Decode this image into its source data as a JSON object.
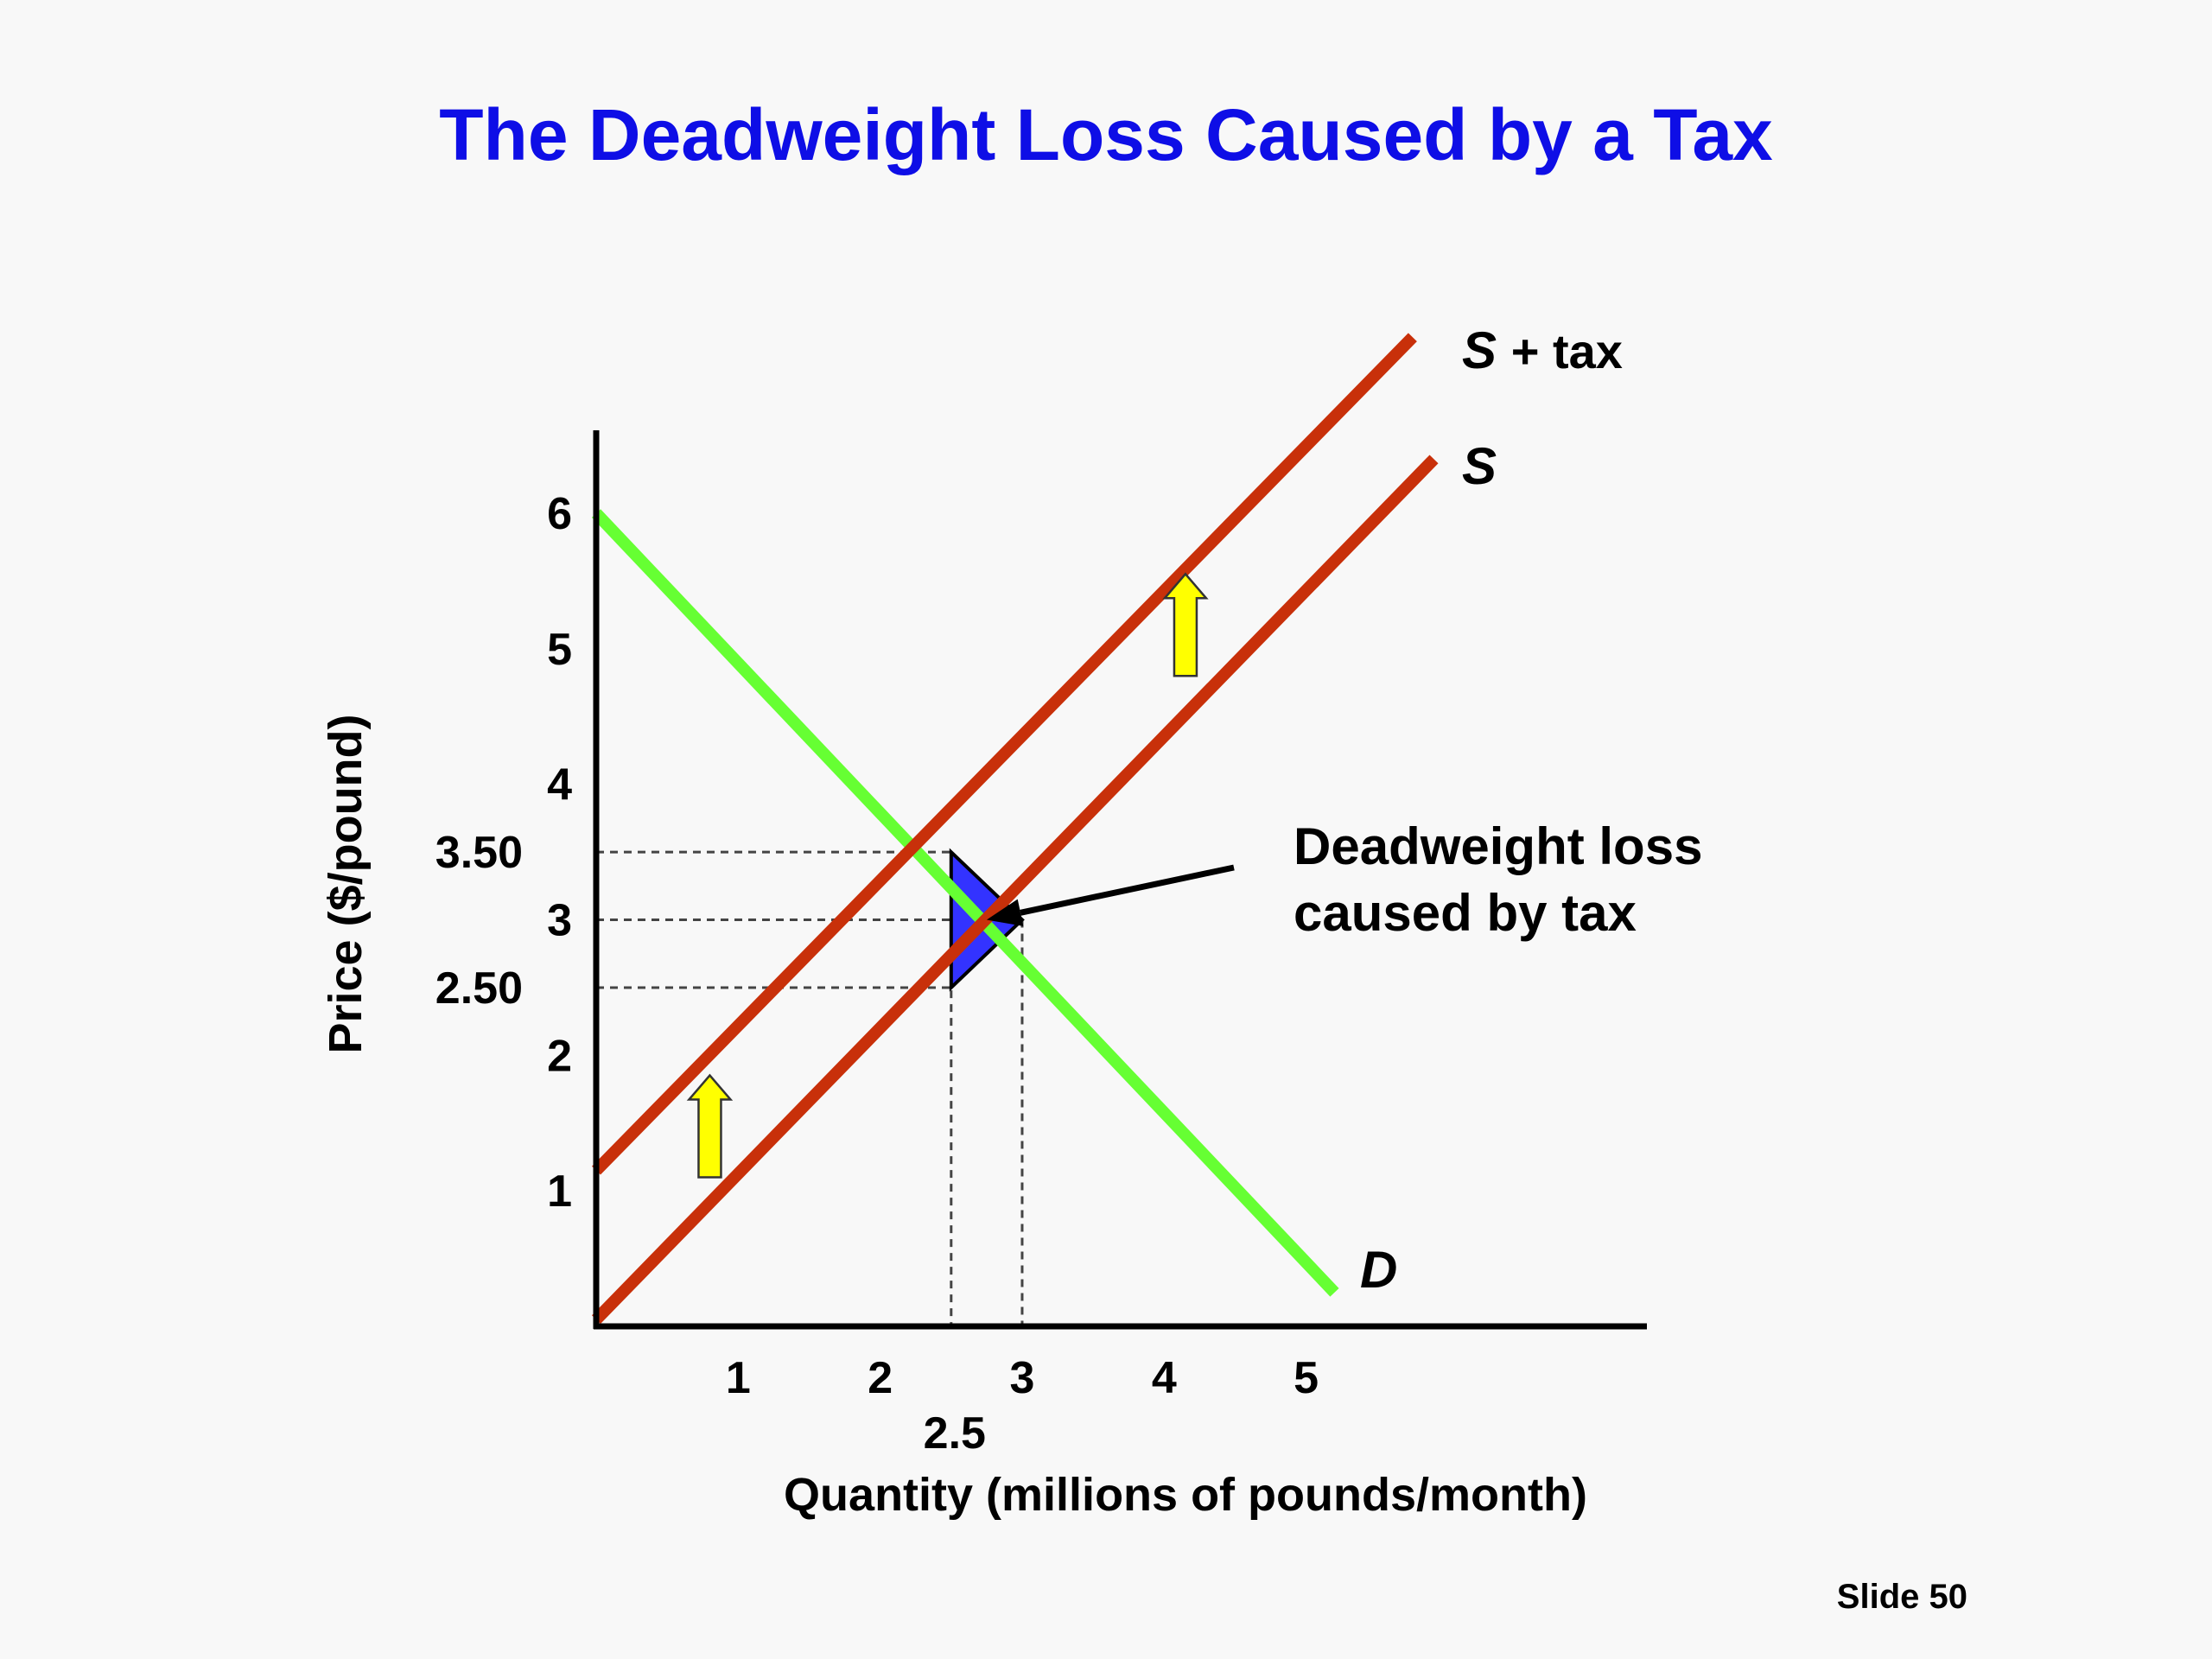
{
  "title": "The Deadweight Loss Caused by a Tax",
  "slide_label": "Slide 50",
  "chart_data": {
    "type": "line",
    "xlabel": "Quantity (millions of pounds/month)",
    "ylabel": "Price ($/pound)",
    "xlim": [
      0,
      7.4
    ],
    "ylim": [
      0,
      6.6
    ],
    "x_ticks": [
      "1",
      "2",
      "3",
      "4",
      "5"
    ],
    "x_tick_values": [
      1,
      2,
      3,
      4,
      5
    ],
    "y_ticks": [
      "1",
      "2",
      "3",
      "4",
      "5",
      "6"
    ],
    "y_tick_values": [
      1,
      2,
      3,
      4,
      5,
      6
    ],
    "extra_x_tick": {
      "label": "2.5",
      "value": 2.5
    },
    "extra_y_ticks": [
      {
        "label": "3.50",
        "value": 3.5
      },
      {
        "label": "2.50",
        "value": 2.5
      }
    ],
    "series": [
      {
        "name": "D",
        "color": "#66ff33",
        "x": [
          0,
          5.2
        ],
        "y": [
          6,
          0.25
        ]
      },
      {
        "name": "S",
        "color": "#c8300a",
        "x": [
          0,
          5.9
        ],
        "y": [
          0.05,
          6.4
        ]
      },
      {
        "name": "S + tax",
        "color": "#c8300a",
        "x": [
          0,
          5.75
        ],
        "y": [
          1.15,
          7.3
        ]
      }
    ],
    "deadweight_loss_triangle": {
      "color": "#3333ff",
      "points": [
        [
          2.5,
          3.5
        ],
        [
          2.5,
          2.5
        ],
        [
          3.0,
          3.0
        ]
      ]
    },
    "guide_lines": [
      {
        "from": [
          0,
          3.5
        ],
        "to": [
          2.5,
          3.5
        ]
      },
      {
        "from": [
          0,
          3.0
        ],
        "to": [
          3.0,
          3.0
        ]
      },
      {
        "from": [
          0,
          2.5
        ],
        "to": [
          2.5,
          2.5
        ]
      },
      {
        "from": [
          2.5,
          3.5
        ],
        "to": [
          2.5,
          0
        ]
      },
      {
        "from": [
          3.0,
          3.0
        ],
        "to": [
          3.0,
          0
        ]
      }
    ],
    "shift_arrows": {
      "color": "#ffff00",
      "points": [
        [
          0.8,
          1.1
        ],
        [
          4.15,
          4.8
        ]
      ]
    },
    "annotation": {
      "lines": [
        "Deadweight loss",
        "caused by tax"
      ],
      "points_to": [
        2.75,
        3.0
      ]
    },
    "series_labels": {
      "S_tax_italic": "S",
      "S_tax_suffix": "+ tax",
      "S": "S",
      "D": "D"
    }
  }
}
